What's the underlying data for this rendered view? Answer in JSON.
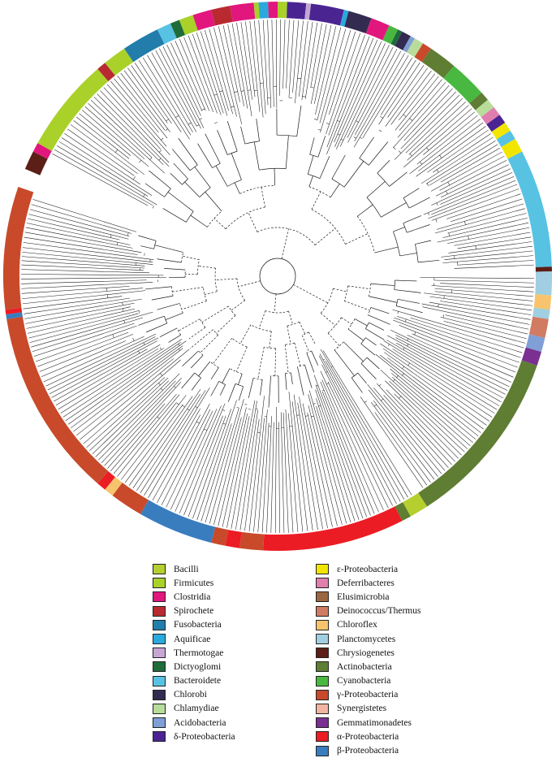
{
  "legend": {
    "left": [
      {
        "label": "Bacilli",
        "color": "#b5cf2f"
      },
      {
        "label": "Firmicutes",
        "color": "#a9d12a"
      },
      {
        "label": "Clostridia",
        "color": "#e2177d"
      },
      {
        "label": "Spirochete",
        "color": "#b82a30"
      },
      {
        "label": "Fusobacteria",
        "color": "#237dab"
      },
      {
        "label": "Aquificae",
        "color": "#2aa9dc"
      },
      {
        "label": "Thermotogae",
        "color": "#c6a7d3"
      },
      {
        "label": "Dictyoglomi",
        "color": "#1f6c3a"
      },
      {
        "label": "Bacteroidete",
        "color": "#58c2e3"
      },
      {
        "label": "Chlorobi",
        "color": "#342b51"
      },
      {
        "label": "Chlamydiae",
        "color": "#b9dc9b"
      },
      {
        "label": "Acidobacteria",
        "color": "#7f9fd6"
      },
      {
        "label": "δ-Proteobacteria",
        "color": "#4a2592"
      }
    ],
    "right": [
      {
        "label": "ε-Proteobacteria",
        "color": "#f2e600"
      },
      {
        "label": "Deferribacteres",
        "color": "#e07fae"
      },
      {
        "label": "Elusimicrobia",
        "color": "#9a6740"
      },
      {
        "label": "Deinococcus/Thermus",
        "color": "#d27b63"
      },
      {
        "label": "Chloroflex",
        "color": "#f7c46d"
      },
      {
        "label": "Planctomycetes",
        "color": "#9fcfe0"
      },
      {
        "label": "Chrysiogenetes",
        "color": "#5b1f18"
      },
      {
        "label": "Actinobacteria",
        "color": "#5f7d33"
      },
      {
        "label": "Cyanobacteria",
        "color": "#49b840"
      },
      {
        "label": "γ-Proteobacteria",
        "color": "#c84a2b"
      },
      {
        "label": "Synergistetes",
        "color": "#f3b4a1"
      },
      {
        "label": "Gemmatimonadetes",
        "color": "#7a2f91"
      },
      {
        "label": "α-Proteobacteria",
        "color": "#ec1c24"
      },
      {
        "label": "β-Proteobacteria",
        "color": "#3a7dbf"
      }
    ]
  },
  "ring_segments": [
    {
      "group": "Chrysiogenetes",
      "start": 203,
      "end": 207
    },
    {
      "group": "Clostridia",
      "start": 207,
      "end": 209
    },
    {
      "group": "Firmicutes",
      "start": 209,
      "end": 229
    },
    {
      "group": "Spirochete",
      "start": 229,
      "end": 231
    },
    {
      "group": "Firmicutes",
      "start": 231,
      "end": 236
    },
    {
      "group": "Fusobacteria",
      "start": 236,
      "end": 244
    },
    {
      "group": "Bacteroidete",
      "start": 244,
      "end": 247
    },
    {
      "group": "Dictyoglomi",
      "start": 247,
      "end": 249
    },
    {
      "group": "Firmicutes",
      "start": 249,
      "end": 252
    },
    {
      "group": "Clostridia",
      "start": 252,
      "end": 256
    },
    {
      "group": "Spirochete",
      "start": 256,
      "end": 260
    },
    {
      "group": "Clostridia",
      "start": 260,
      "end": 265
    },
    {
      "group": "Firmicutes",
      "start": 265,
      "end": 266
    },
    {
      "group": "Aquificae",
      "start": 266,
      "end": 268
    },
    {
      "group": "Clostridia",
      "start": 268,
      "end": 270
    },
    {
      "group": "Firmicutes",
      "start": 270,
      "end": 272
    },
    {
      "group": "δ-Proteobacteria",
      "start": 272,
      "end": 276
    },
    {
      "group": "Thermotogae",
      "start": 276,
      "end": 277
    },
    {
      "group": "δ-Proteobacteria",
      "start": 277,
      "end": 284
    },
    {
      "group": "Aquificae",
      "start": 284,
      "end": 285
    },
    {
      "group": "Chlorobi",
      "start": 285,
      "end": 290
    },
    {
      "group": "Clostridia",
      "start": 290,
      "end": 294
    },
    {
      "group": "Cyanobacteria",
      "start": 294,
      "end": 296
    },
    {
      "group": "Dictyoglomi",
      "start": 296,
      "end": 297
    },
    {
      "group": "Chlorobi",
      "start": 297,
      "end": 299
    },
    {
      "group": "Acidobacteria",
      "start": 299,
      "end": 300
    },
    {
      "group": "Chlamydiae",
      "start": 300,
      "end": 302
    },
    {
      "group": "γ-Proteobacteria",
      "start": 302,
      "end": 304
    },
    {
      "group": "Actinobacteria",
      "start": 304,
      "end": 310
    },
    {
      "group": "Cyanobacteria",
      "start": 310,
      "end": 318
    },
    {
      "group": "Actinobacteria",
      "start": 318,
      "end": 320
    },
    {
      "group": "Chlamydiae",
      "start": 320,
      "end": 322
    },
    {
      "group": "Deferribacteres",
      "start": 322,
      "end": 324
    },
    {
      "group": "δ-Proteobacteria",
      "start": 324,
      "end": 326
    },
    {
      "group": "ε-Proteobacteria",
      "start": 326,
      "end": 328
    },
    {
      "group": "Bacteroidete",
      "start": 328,
      "end": 330
    },
    {
      "group": "ε-Proteobacteria",
      "start": 330,
      "end": 333
    },
    {
      "group": "Bacteroidete",
      "start": 333,
      "end": 358
    },
    {
      "group": "Chrysiogenetes",
      "start": 358,
      "end": 359
    },
    {
      "group": "Planctomycetes",
      "start": 359,
      "end": 364
    },
    {
      "group": "Chloroflex",
      "start": 364,
      "end": 367
    },
    {
      "group": "Planctomycetes",
      "start": 367,
      "end": 369
    },
    {
      "group": "Deinococcus/Thermus",
      "start": 369,
      "end": 373
    },
    {
      "group": "Acidobacteria",
      "start": 373,
      "end": 376
    },
    {
      "group": "Gemmatimonadetes",
      "start": 376,
      "end": 379
    },
    {
      "group": "Actinobacteria",
      "start": 379,
      "end": 417
    },
    {
      "group": "Bacilli",
      "start": 417,
      "end": 421
    },
    {
      "group": "Actinobacteria",
      "start": 421,
      "end": 423
    },
    {
      "group": "α-Proteobacteria",
      "start": 423,
      "end": 453
    },
    {
      "group": "γ-Proteobacteria",
      "start": 453,
      "end": 458
    },
    {
      "group": "α-Proteobacteria",
      "start": 458,
      "end": 461
    },
    {
      "group": "γ-Proteobacteria",
      "start": 461,
      "end": 464
    },
    {
      "group": "β-Proteobacteria",
      "start": 464,
      "end": 480
    },
    {
      "group": "γ-Proteobacteria",
      "start": 480,
      "end": 487
    },
    {
      "group": "Chloroflex",
      "start": 487,
      "end": 489
    },
    {
      "group": "α-Proteobacteria",
      "start": 489,
      "end": 491
    },
    {
      "group": "γ-Proteobacteria",
      "start": 491,
      "end": 531
    },
    {
      "group": "β-Proteobacteria",
      "start": 531,
      "end": 532
    },
    {
      "group": "α-Proteobacteria",
      "start": 532,
      "end": 533
    },
    {
      "group": "γ-Proteobacteria",
      "start": 533,
      "end": 559
    }
  ]
}
